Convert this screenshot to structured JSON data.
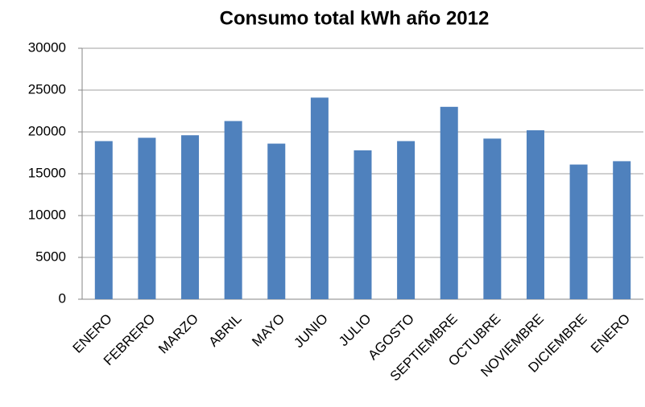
{
  "chart_data": {
    "type": "bar",
    "title": "Consumo total kWh año 2012",
    "categories": [
      "ENERO",
      "FEBRERO",
      "MARZO",
      "ABRIL",
      "MAYO",
      "JUNIO",
      "JULIO",
      "AGOSTO",
      "SEPTIEMBRE",
      "OCTUBRE",
      "NOVIEMBRE",
      "DICIEMBRE",
      "ENERO"
    ],
    "values": [
      18900,
      19300,
      19600,
      21300,
      18600,
      24100,
      17800,
      18900,
      23000,
      19200,
      20200,
      16100,
      16500
    ],
    "color": "#4f81bd",
    "ylim": [
      0,
      30000
    ],
    "yticks": [
      0,
      5000,
      10000,
      15000,
      20000,
      25000,
      30000
    ],
    "grid": true
  }
}
